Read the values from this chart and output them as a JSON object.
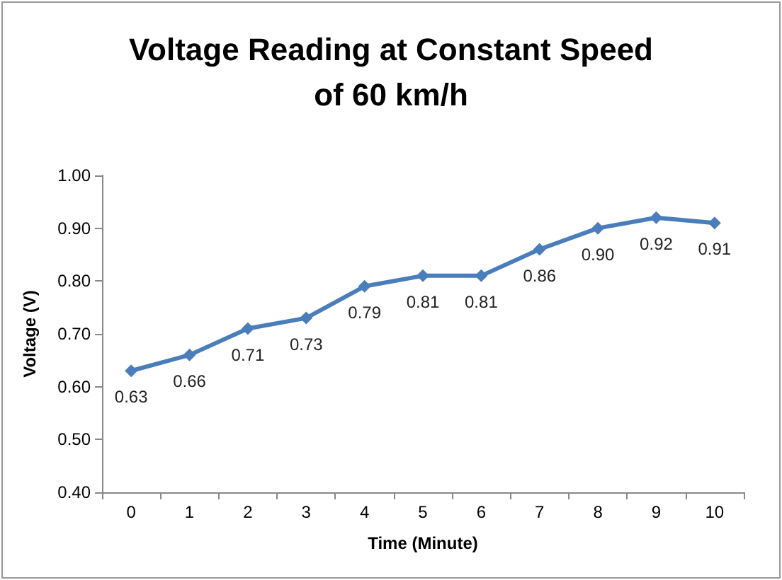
{
  "chart_data": {
    "type": "line",
    "title": "Voltage Reading at Constant Speed\nof 60 km/h",
    "xlabel": "Time (Minute)",
    "ylabel": "Voltage (V)",
    "categories": [
      "0",
      "1",
      "2",
      "3",
      "4",
      "5",
      "6",
      "7",
      "8",
      "9",
      "10"
    ],
    "series": [
      {
        "color": "#4a7ebb",
        "values": [
          0.63,
          0.66,
          0.71,
          0.73,
          0.79,
          0.81,
          0.81,
          0.86,
          0.9,
          0.92,
          0.91
        ],
        "value_labels": [
          "0.63",
          "0.66",
          "0.71",
          "0.73",
          "0.79",
          "0.81",
          "0.81",
          "0.86",
          "0.90",
          "0.92",
          "0.91"
        ]
      }
    ],
    "ylim": [
      0.4,
      1.0
    ],
    "yticks": [
      {
        "value": 0.4,
        "label": "0.40"
      },
      {
        "value": 0.5,
        "label": "0.50"
      },
      {
        "value": 0.6,
        "label": "0.60"
      },
      {
        "value": 0.7,
        "label": "0.70"
      },
      {
        "value": 0.8,
        "label": "0.80"
      },
      {
        "value": 0.9,
        "label": "0.90"
      },
      {
        "value": 1.0,
        "label": "1.00"
      }
    ],
    "marker": "diamond",
    "line_style": "solid",
    "grid": false
  }
}
